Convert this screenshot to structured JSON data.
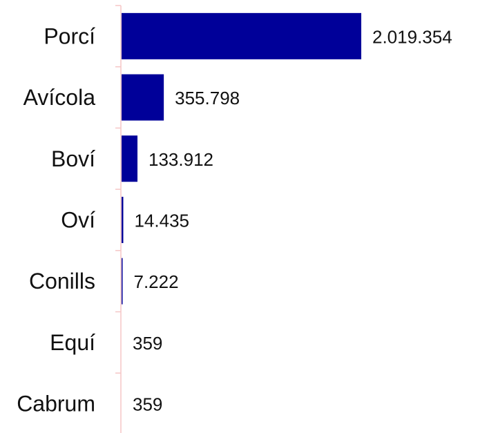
{
  "chart_data": {
    "type": "bar",
    "orientation": "horizontal",
    "categories": [
      "Porcí",
      "Avícola",
      "Boví",
      "Oví",
      "Conills",
      "Equí",
      "Cabrum"
    ],
    "values": [
      2019354,
      355798,
      133912,
      14435,
      7222,
      359,
      359
    ],
    "value_labels": [
      "2.019.354",
      "355.798",
      "133.912",
      "14.435",
      "7.222",
      "359",
      "359"
    ],
    "title": "",
    "xlabel": "",
    "ylabel": "",
    "xlim": [
      0,
      2019354
    ],
    "grid": false,
    "legend": "none",
    "colors": {
      "bar": "#000099",
      "axis": "#f5c6c6"
    }
  }
}
